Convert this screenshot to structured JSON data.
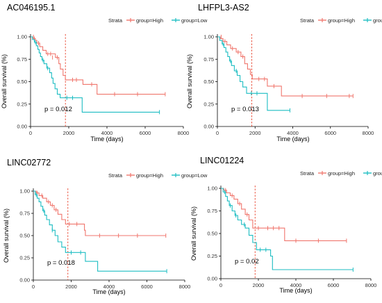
{
  "colors": {
    "high": "#F0766D",
    "low": "#1CBDC2",
    "cutoff": "#E8442E",
    "axis": "#000000"
  },
  "chart_data": [
    {
      "type": "line",
      "title": "AC046195.1",
      "legend_title": "Strata",
      "legend_position": "top",
      "xlabel": "Time (days)",
      "ylabel": "Overall survival (%)",
      "xlim": [
        0,
        8000
      ],
      "ylim": [
        0,
        1
      ],
      "x_ticks": [
        "0",
        "2000",
        "4000",
        "6000",
        "8000"
      ],
      "y_ticks": [
        "0.00",
        "0.25",
        "0.50",
        "0.75",
        "1.00"
      ],
      "cutoff_x": 1825,
      "pvalue": "p = 0.012",
      "series": [
        {
          "name": "group=High",
          "steps": [
            [
              0,
              1
            ],
            [
              120,
              0.98
            ],
            [
              250,
              0.96
            ],
            [
              330,
              0.93
            ],
            [
              480,
              0.89
            ],
            [
              640,
              0.85
            ],
            [
              820,
              0.81
            ],
            [
              1300,
              0.77
            ],
            [
              1480,
              0.7
            ],
            [
              1560,
              0.64
            ],
            [
              1700,
              0.57
            ],
            [
              1820,
              0.52
            ],
            [
              2740,
              0.47
            ],
            [
              3480,
              0.36
            ],
            [
              7050,
              0.36
            ]
          ],
          "censor": [
            [
              150,
              1
            ],
            [
              200,
              0.98
            ],
            [
              420,
              0.93
            ],
            [
              900,
              0.81
            ],
            [
              1050,
              0.81
            ],
            [
              1150,
              0.77
            ],
            [
              1400,
              0.77
            ],
            [
              2200,
              0.52
            ],
            [
              2400,
              0.52
            ],
            [
              3200,
              0.47
            ],
            [
              4400,
              0.36
            ],
            [
              5600,
              0.36
            ],
            [
              7050,
              0.36
            ]
          ]
        },
        {
          "name": "group=Low",
          "steps": [
            [
              0,
              1
            ],
            [
              100,
              0.97
            ],
            [
              200,
              0.94
            ],
            [
              300,
              0.9
            ],
            [
              380,
              0.86
            ],
            [
              450,
              0.82
            ],
            [
              520,
              0.78
            ],
            [
              600,
              0.74
            ],
            [
              700,
              0.7
            ],
            [
              850,
              0.65
            ],
            [
              1000,
              0.6
            ],
            [
              1100,
              0.54
            ],
            [
              1180,
              0.48
            ],
            [
              1280,
              0.42
            ],
            [
              1400,
              0.36
            ],
            [
              1550,
              0.32
            ],
            [
              2700,
              0.16
            ],
            [
              6750,
              0.16
            ]
          ],
          "censor": [
            [
              250,
              0.94
            ],
            [
              650,
              0.74
            ],
            [
              900,
              0.65
            ],
            [
              1900,
              0.32
            ],
            [
              2200,
              0.32
            ],
            [
              6750,
              0.16
            ]
          ]
        }
      ]
    },
    {
      "type": "line",
      "title": "LHFPL3-AS2",
      "legend_title": "Strata",
      "legend_position": "top",
      "xlabel": "Time (days)",
      "ylabel": "Overall survival (%)",
      "xlim": [
        0,
        8000
      ],
      "ylim": [
        0,
        1
      ],
      "x_ticks": [
        "0",
        "2000",
        "4000",
        "6000",
        "8000"
      ],
      "y_ticks": [
        "0.00",
        "0.25",
        "0.50",
        "0.75",
        "1.00"
      ],
      "cutoff_x": 1825,
      "pvalue": "p = 0.013",
      "series": [
        {
          "name": "group=High",
          "steps": [
            [
              0,
              1
            ],
            [
              150,
              0.98
            ],
            [
              300,
              0.95
            ],
            [
              500,
              0.91
            ],
            [
              700,
              0.87
            ],
            [
              1000,
              0.83
            ],
            [
              1250,
              0.78
            ],
            [
              1450,
              0.7
            ],
            [
              1600,
              0.64
            ],
            [
              1750,
              0.58
            ],
            [
              1850,
              0.53
            ],
            [
              2650,
              0.45
            ],
            [
              3400,
              0.34
            ],
            [
              7200,
              0.34
            ]
          ],
          "censor": [
            [
              200,
              1
            ],
            [
              400,
              0.95
            ],
            [
              800,
              0.87
            ],
            [
              1100,
              0.83
            ],
            [
              1350,
              0.78
            ],
            [
              2200,
              0.53
            ],
            [
              2500,
              0.53
            ],
            [
              3000,
              0.45
            ],
            [
              4500,
              0.34
            ],
            [
              5800,
              0.34
            ],
            [
              7000,
              0.34
            ],
            [
              7200,
              0.34
            ]
          ]
        },
        {
          "name": "group=Low",
          "steps": [
            [
              0,
              1
            ],
            [
              120,
              0.96
            ],
            [
              250,
              0.92
            ],
            [
              350,
              0.88
            ],
            [
              450,
              0.83
            ],
            [
              550,
              0.78
            ],
            [
              650,
              0.73
            ],
            [
              750,
              0.68
            ],
            [
              900,
              0.62
            ],
            [
              1050,
              0.57
            ],
            [
              1200,
              0.5
            ],
            [
              1350,
              0.44
            ],
            [
              1550,
              0.37
            ],
            [
              2650,
              0.18
            ],
            [
              3850,
              0.18
            ]
          ],
          "censor": [
            [
              300,
              0.92
            ],
            [
              700,
              0.73
            ],
            [
              1000,
              0.62
            ],
            [
              1800,
              0.37
            ],
            [
              2100,
              0.37
            ],
            [
              3850,
              0.18
            ]
          ]
        }
      ]
    },
    {
      "type": "line",
      "title": "LINC02772",
      "legend_title": "Strata",
      "legend_position": "top",
      "xlabel": "Time (days)",
      "ylabel": "Overall survival (%)",
      "xlim": [
        0,
        8000
      ],
      "ylim": [
        0,
        1
      ],
      "x_ticks": [
        "0",
        "2000",
        "4000",
        "6000",
        "8000"
      ],
      "y_ticks": [
        "0.00",
        "0.25",
        "0.50",
        "0.75",
        "1.00"
      ],
      "cutoff_x": 1825,
      "pvalue": "p = 0.018",
      "series": [
        {
          "name": "group=High",
          "steps": [
            [
              0,
              1
            ],
            [
              150,
              0.98
            ],
            [
              300,
              0.95
            ],
            [
              500,
              0.92
            ],
            [
              700,
              0.88
            ],
            [
              900,
              0.84
            ],
            [
              1100,
              0.79
            ],
            [
              1300,
              0.74
            ],
            [
              1500,
              0.68
            ],
            [
              1700,
              0.63
            ],
            [
              2700,
              0.56
            ],
            [
              2750,
              0.5
            ],
            [
              7000,
              0.5
            ]
          ],
          "censor": [
            [
              200,
              0.98
            ],
            [
              450,
              0.95
            ],
            [
              800,
              0.88
            ],
            [
              1000,
              0.84
            ],
            [
              1200,
              0.79
            ],
            [
              1900,
              0.63
            ],
            [
              2300,
              0.63
            ],
            [
              3500,
              0.5
            ],
            [
              4500,
              0.5
            ],
            [
              5500,
              0.5
            ],
            [
              7000,
              0.5
            ]
          ]
        },
        {
          "name": "group=Low",
          "steps": [
            [
              0,
              1
            ],
            [
              100,
              0.96
            ],
            [
              200,
              0.92
            ],
            [
              300,
              0.88
            ],
            [
              400,
              0.83
            ],
            [
              500,
              0.78
            ],
            [
              600,
              0.73
            ],
            [
              700,
              0.68
            ],
            [
              850,
              0.62
            ],
            [
              1000,
              0.56
            ],
            [
              1150,
              0.5
            ],
            [
              1300,
              0.43
            ],
            [
              1500,
              0.37
            ],
            [
              1700,
              0.31
            ],
            [
              2750,
              0.21
            ],
            [
              3400,
              0.1
            ],
            [
              7050,
              0.1
            ]
          ],
          "censor": [
            [
              150,
              0.96
            ],
            [
              550,
              0.78
            ],
            [
              1000,
              0.56
            ],
            [
              2000,
              0.31
            ],
            [
              2500,
              0.31
            ],
            [
              7050,
              0.1
            ]
          ]
        }
      ]
    },
    {
      "type": "line",
      "title": "LINC01224",
      "legend_title": "Strata",
      "legend_position": "top",
      "xlabel": "Time (days)",
      "ylabel": "Overall survival (%)",
      "xlim": [
        0,
        8000
      ],
      "ylim": [
        0,
        1
      ],
      "x_ticks": [
        "0",
        "2000",
        "4000",
        "6000",
        "8000"
      ],
      "y_ticks": [
        "0.00",
        "0.25",
        "0.50",
        "0.75",
        "1.00"
      ],
      "cutoff_x": 1825,
      "pvalue": "p = 0.02",
      "series": [
        {
          "name": "group=High",
          "steps": [
            [
              0,
              1
            ],
            [
              150,
              0.98
            ],
            [
              300,
              0.95
            ],
            [
              500,
              0.92
            ],
            [
              700,
              0.88
            ],
            [
              900,
              0.83
            ],
            [
              1100,
              0.77
            ],
            [
              1300,
              0.71
            ],
            [
              1500,
              0.65
            ],
            [
              1700,
              0.56
            ],
            [
              3400,
              0.42
            ],
            [
              6700,
              0.42
            ]
          ],
          "censor": [
            [
              250,
              0.98
            ],
            [
              600,
              0.92
            ],
            [
              1000,
              0.83
            ],
            [
              1400,
              0.71
            ],
            [
              2000,
              0.56
            ],
            [
              2500,
              0.56
            ],
            [
              2800,
              0.56
            ],
            [
              3100,
              0.56
            ],
            [
              4000,
              0.42
            ],
            [
              5200,
              0.42
            ],
            [
              6700,
              0.42
            ]
          ]
        },
        {
          "name": "group=Low",
          "steps": [
            [
              0,
              1
            ],
            [
              120,
              0.96
            ],
            [
              250,
              0.91
            ],
            [
              350,
              0.86
            ],
            [
              450,
              0.81
            ],
            [
              600,
              0.75
            ],
            [
              750,
              0.7
            ],
            [
              900,
              0.65
            ],
            [
              1100,
              0.6
            ],
            [
              1300,
              0.56
            ],
            [
              1500,
              0.48
            ],
            [
              1700,
              0.4
            ],
            [
              1900,
              0.32
            ],
            [
              2650,
              0.25
            ],
            [
              2750,
              0.1
            ],
            [
              7050,
              0.1
            ]
          ],
          "censor": [
            [
              200,
              0.96
            ],
            [
              500,
              0.81
            ],
            [
              800,
              0.7
            ],
            [
              1250,
              0.6
            ],
            [
              2100,
              0.32
            ],
            [
              2400,
              0.32
            ],
            [
              7050,
              0.1
            ]
          ]
        }
      ]
    }
  ]
}
